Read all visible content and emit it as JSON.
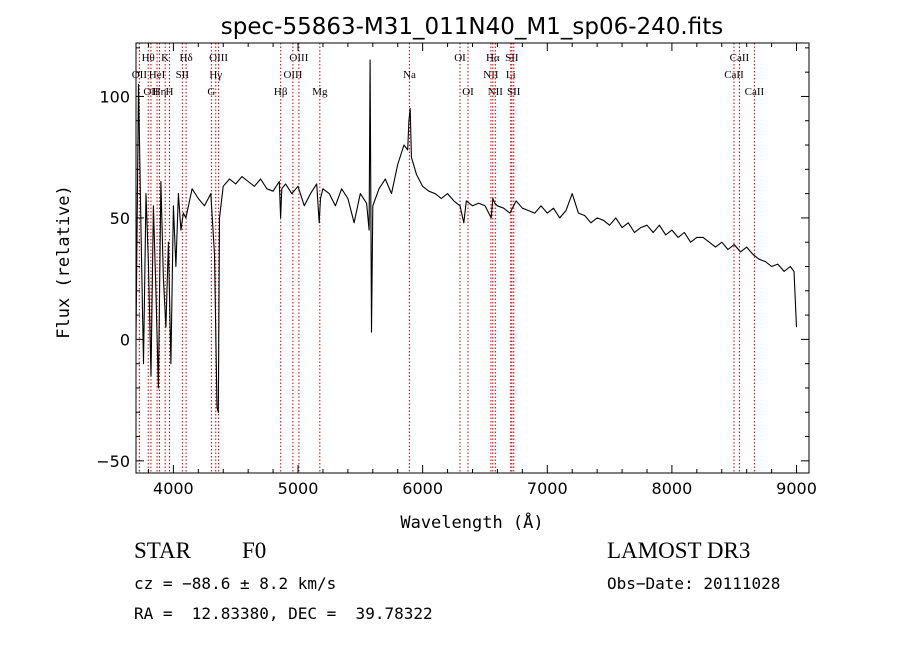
{
  "chart_data": {
    "type": "line",
    "title": "spec-55863-M31_011N40_M1_sp06-240.fits",
    "xlabel": "Wavelength (Å)",
    "ylabel": "Flux (relative)",
    "xlim": [
      3700,
      9100
    ],
    "ylim": [
      -55,
      122
    ],
    "x_ticks": [
      4000,
      5000,
      6000,
      7000,
      8000,
      9000
    ],
    "y_ticks": [
      -50,
      0,
      50,
      100
    ],
    "series": [
      {
        "name": "spectrum",
        "x": [
          3700,
          3720,
          3740,
          3760,
          3780,
          3800,
          3820,
          3840,
          3860,
          3880,
          3900,
          3920,
          3940,
          3960,
          3980,
          4000,
          4020,
          4040,
          4060,
          4080,
          4100,
          4150,
          4200,
          4250,
          4300,
          4330,
          4350,
          4360,
          4370,
          4400,
          4450,
          4500,
          4550,
          4600,
          4650,
          4700,
          4750,
          4800,
          4850,
          4860,
          4870,
          4900,
          4950,
          5000,
          5050,
          5100,
          5150,
          5170,
          5180,
          5200,
          5250,
          5300,
          5350,
          5400,
          5450,
          5500,
          5550,
          5570,
          5578,
          5590,
          5600,
          5650,
          5700,
          5750,
          5800,
          5850,
          5880,
          5890,
          5900,
          5910,
          5950,
          6000,
          6050,
          6100,
          6150,
          6200,
          6250,
          6300,
          6330,
          6350,
          6400,
          6450,
          6500,
          6550,
          6563,
          6580,
          6600,
          6650,
          6700,
          6750,
          6800,
          6850,
          6900,
          6950,
          7000,
          7050,
          7100,
          7150,
          7200,
          7250,
          7300,
          7350,
          7400,
          7450,
          7500,
          7550,
          7600,
          7650,
          7700,
          7750,
          7800,
          7850,
          7900,
          7950,
          8000,
          8050,
          8100,
          8150,
          8200,
          8250,
          8300,
          8350,
          8400,
          8450,
          8500,
          8550,
          8600,
          8650,
          8700,
          8750,
          8800,
          8850,
          8900,
          8950,
          8980,
          9000
        ],
        "y": [
          0,
          105,
          45,
          -10,
          60,
          30,
          -15,
          55,
          20,
          -20,
          65,
          25,
          5,
          40,
          -10,
          55,
          30,
          60,
          45,
          52,
          50,
          62,
          58,
          55,
          60,
          35,
          -28,
          -30,
          50,
          63,
          66,
          64,
          67,
          65,
          63,
          66,
          62,
          61,
          65,
          50,
          62,
          64,
          60,
          63,
          55,
          60,
          64,
          48,
          58,
          62,
          60,
          55,
          62,
          58,
          48,
          60,
          56,
          45,
          115,
          3,
          55,
          62,
          66,
          60,
          72,
          80,
          78,
          90,
          95,
          75,
          68,
          63,
          61,
          60,
          58,
          60,
          57,
          55,
          48,
          57,
          55,
          56,
          55,
          50,
          58,
          56,
          55,
          54,
          52,
          57,
          54,
          53,
          52,
          55,
          52,
          54,
          50,
          53,
          60,
          52,
          51,
          48,
          50,
          49,
          47,
          50,
          46,
          48,
          44,
          46,
          47,
          44,
          47,
          43,
          45,
          42,
          44,
          40,
          42,
          42,
          40,
          38,
          40,
          37,
          39,
          36,
          38,
          35,
          33,
          32,
          30,
          31,
          28,
          30,
          28,
          5
        ]
      }
    ],
    "lines": [
      {
        "label": "OII",
        "wavelength": 3727,
        "row": 1
      },
      {
        "label": "Hθ",
        "wavelength": 3798,
        "row": 0
      },
      {
        "label": "OII",
        "wavelength": 3820,
        "row": 2
      },
      {
        "label": "HeI",
        "wavelength": 3869,
        "row": 1
      },
      {
        "label": "K",
        "wavelength": 3934,
        "row": 0
      },
      {
        "label": "Hη",
        "wavelength": 3889,
        "row": 2
      },
      {
        "label": "H",
        "wavelength": 3969,
        "row": 2
      },
      {
        "label": "SII",
        "wavelength": 4072,
        "row": 1
      },
      {
        "label": "Hδ",
        "wavelength": 4102,
        "row": 0
      },
      {
        "label": "OIII",
        "wavelength": 4363,
        "row": 0
      },
      {
        "label": "Hγ",
        "wavelength": 4340,
        "row": 1
      },
      {
        "label": "G",
        "wavelength": 4305,
        "row": 2
      },
      {
        "label": "Hβ",
        "wavelength": 4861,
        "row": 2
      },
      {
        "label": "OIII",
        "wavelength": 4959,
        "row": 1
      },
      {
        "label": "OIII",
        "wavelength": 5007,
        "row": 0
      },
      {
        "label": "Mg",
        "wavelength": 5175,
        "row": 2
      },
      {
        "label": "Na",
        "wavelength": 5894,
        "row": 1
      },
      {
        "label": "OI",
        "wavelength": 6300,
        "row": 0
      },
      {
        "label": "OI",
        "wavelength": 6364,
        "row": 2
      },
      {
        "label": "NII",
        "wavelength": 6548,
        "row": 1
      },
      {
        "label": "NII",
        "wavelength": 6583,
        "row": 2
      },
      {
        "label": "Hα",
        "wavelength": 6563,
        "row": 0
      },
      {
        "label": "Li",
        "wavelength": 6707,
        "row": 1
      },
      {
        "label": "SII",
        "wavelength": 6716,
        "row": 0
      },
      {
        "label": "SII",
        "wavelength": 6731,
        "row": 2
      },
      {
        "label": "CaII",
        "wavelength": 8498,
        "row": 1
      },
      {
        "label": "CaII",
        "wavelength": 8542,
        "row": 0
      },
      {
        "label": "CaII",
        "wavelength": 8662,
        "row": 2
      }
    ]
  },
  "info": {
    "class_label": "STAR",
    "subclass": "F0",
    "survey": "LAMOST DR3",
    "cz": "cz = −88.6 ± 8.2 km/s",
    "obs_date": "Obs−Date: 20111028",
    "radec": "RA =  12.83380, DEC =  39.78322"
  }
}
